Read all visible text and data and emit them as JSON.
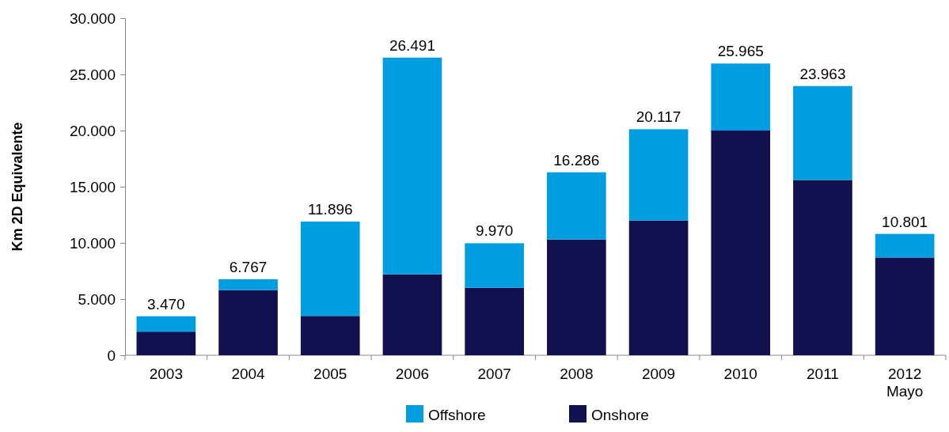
{
  "chart_data": {
    "type": "bar",
    "stacked": true,
    "ylabel": "Km 2D Equivalente",
    "categories": [
      "2003",
      "2004",
      "2005",
      "2006",
      "2007",
      "2008",
      "2009",
      "2010",
      "2011",
      "2012\nMayo"
    ],
    "series": [
      {
        "name": "Onshore",
        "color": "#12114f",
        "values": [
          2100,
          5800,
          3500,
          7200,
          6000,
          10300,
          12000,
          20000,
          15600,
          8700
        ]
      },
      {
        "name": "Offshore",
        "color": "#009ee0",
        "values": [
          1370,
          967,
          8396,
          19291,
          3970,
          5986,
          8117,
          5965,
          8363,
          2101
        ]
      }
    ],
    "totals": [
      "3.470",
      "6.767",
      "11.896",
      "26.491",
      "9.970",
      "16.286",
      "20.117",
      "25.965",
      "23.963",
      "10.801"
    ],
    "ylim": [
      0,
      30000
    ],
    "yticks": [
      {
        "value": 0,
        "label": "0"
      },
      {
        "value": 5000,
        "label": "5.000"
      },
      {
        "value": 10000,
        "label": "10.000"
      },
      {
        "value": 15000,
        "label": "15.000"
      },
      {
        "value": 20000,
        "label": "20.000"
      },
      {
        "value": 25000,
        "label": "25.000"
      },
      {
        "value": 30000,
        "label": "30.000"
      }
    ],
    "grid": false,
    "legend": "bottom"
  }
}
